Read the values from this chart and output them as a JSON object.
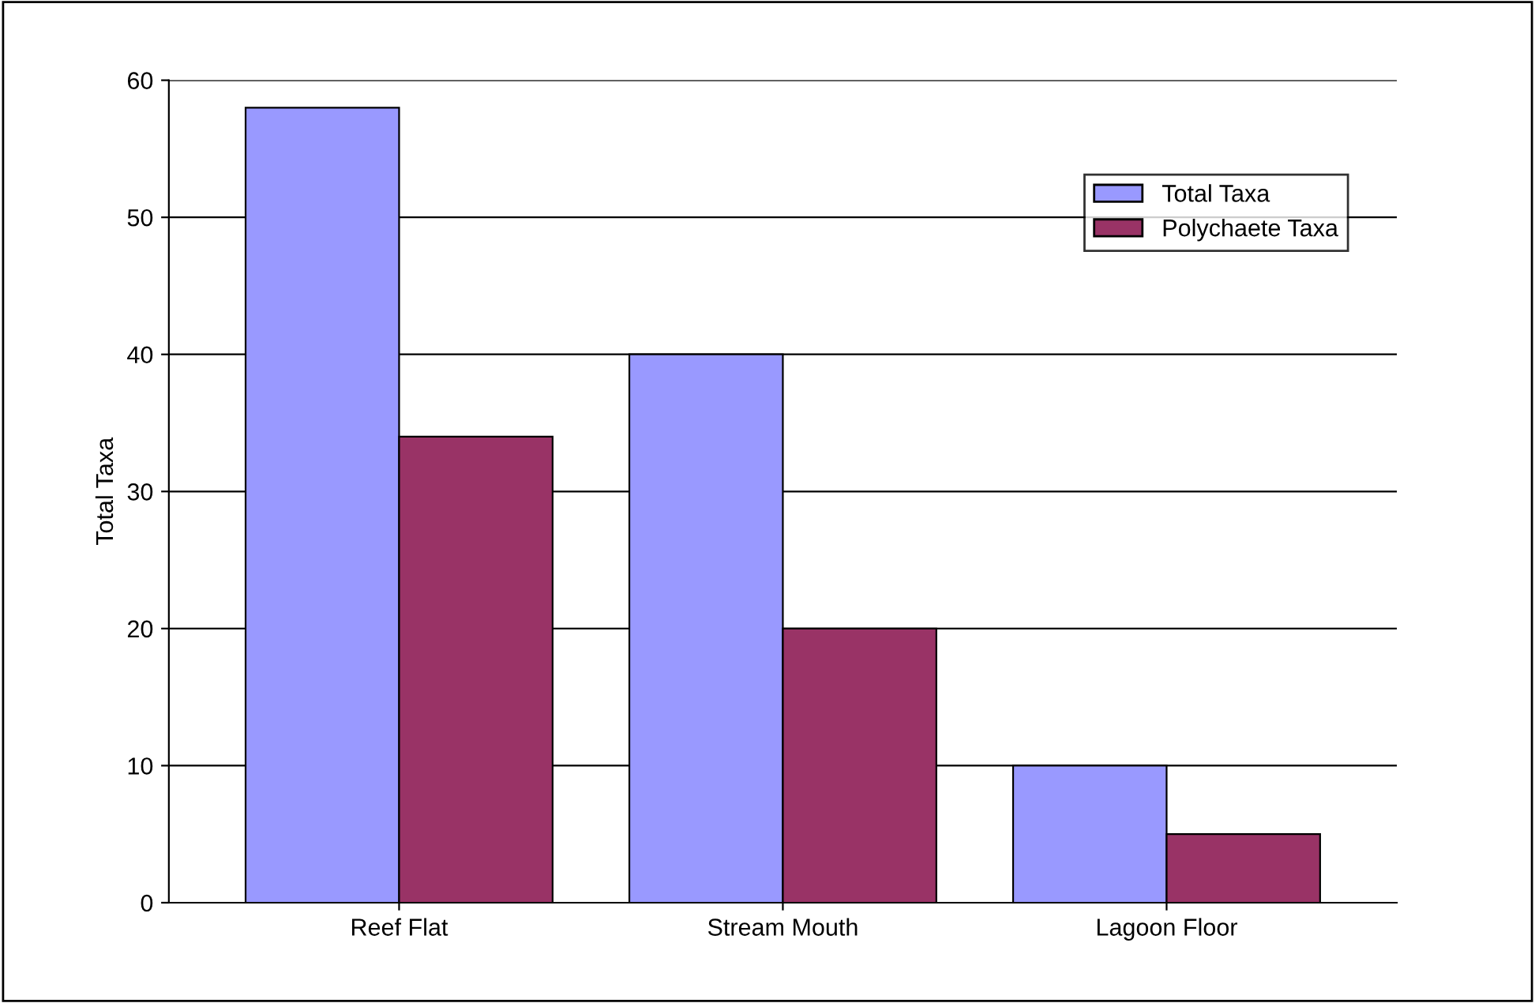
{
  "chart_data": {
    "type": "bar",
    "ylabel": "Total Taxa",
    "categories": [
      "Reef Flat",
      "Stream Mouth",
      "Lagoon Floor"
    ],
    "series": [
      {
        "name": "Total Taxa",
        "color": "#9999ff",
        "values": [
          58,
          40,
          10
        ]
      },
      {
        "name": "Polychaete Taxa",
        "color": "#993366",
        "values": [
          34,
          20,
          5
        ]
      }
    ],
    "ylim": [
      0,
      60
    ],
    "yticks": [
      0,
      10,
      20,
      30,
      40,
      50,
      60
    ],
    "grid": "y",
    "legend": "top right"
  }
}
